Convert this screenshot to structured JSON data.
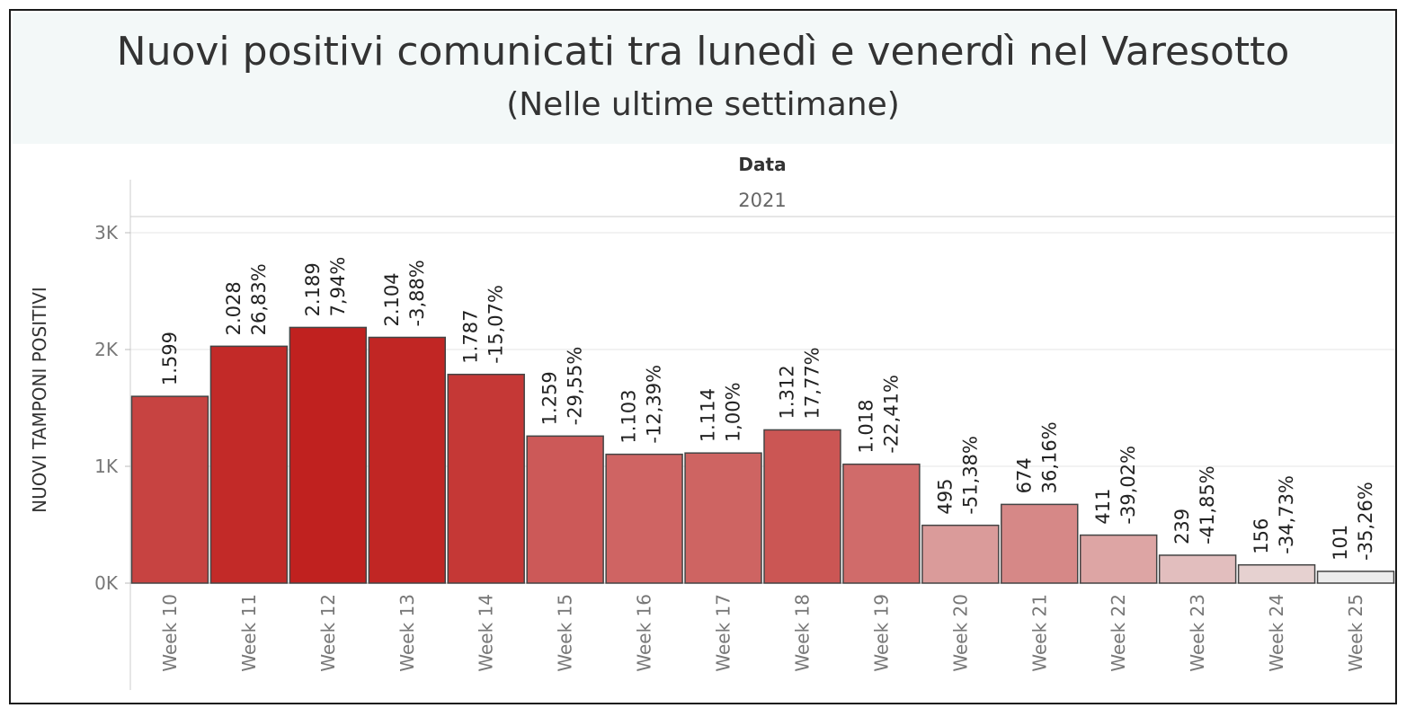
{
  "chart_data": {
    "type": "bar",
    "title": "Nuovi positivi comunicati tra lunedì e venerdì nel Varesotto",
    "subtitle": "(Nelle ultime settimane)",
    "column_header": "Data",
    "year": "2021",
    "ylabel": "NUOVI TAMPONI POSITIVI",
    "ylim": [
      0,
      3000
    ],
    "yticks": [
      {
        "value": 0,
        "label": "0K"
      },
      {
        "value": 1000,
        "label": "1K"
      },
      {
        "value": 2000,
        "label": "2K"
      },
      {
        "value": 3000,
        "label": "3K"
      }
    ],
    "grid": true,
    "categories": [
      "Week 10",
      "Week 11",
      "Week 12",
      "Week 13",
      "Week 14",
      "Week 15",
      "Week 16",
      "Week 17",
      "Week 18",
      "Week 19",
      "Week 20",
      "Week 21",
      "Week 22",
      "Week 23",
      "Week 24",
      "Week 25"
    ],
    "values": [
      1599,
      2028,
      2189,
      2104,
      1787,
      1259,
      1103,
      1114,
      1312,
      1018,
      495,
      674,
      411,
      239,
      156,
      101
    ],
    "value_labels": [
      "1.599",
      "2.028",
      "2.189",
      "2.104",
      "1.787",
      "1.259",
      "1.103",
      "1.114",
      "1.312",
      "1.018",
      "495",
      "674",
      "411",
      "239",
      "156",
      "101"
    ],
    "change_labels": [
      "",
      "26,83%",
      "7,94%",
      "-3,88%",
      "-15,07%",
      "-29,55%",
      "-12,39%",
      "1,00%",
      "17,77%",
      "-22,41%",
      "-51,38%",
      "36,16%",
      "-39,02%",
      "-41,85%",
      "-34,73%",
      "-35,26%"
    ],
    "colors": {
      "high": "#c0211f",
      "low": "#ececec",
      "bar_border": "#444444",
      "grid": "#e6e6e6",
      "header_bg": "#f3f8f8"
    }
  }
}
